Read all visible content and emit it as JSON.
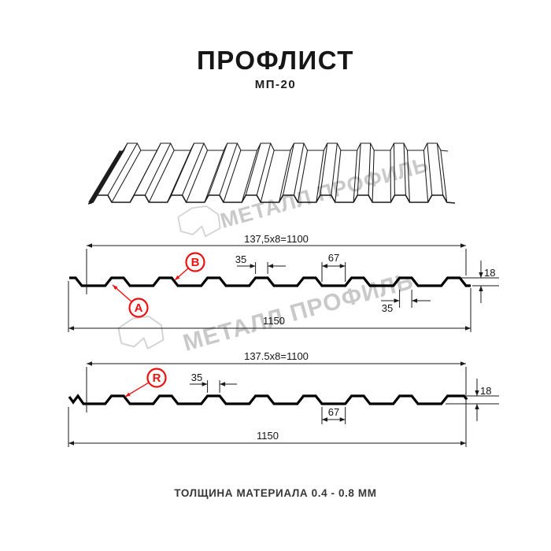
{
  "title": "ПРОФЛИСТ",
  "subtitle": "МП-20",
  "footer_note": "ТОЛЩИНА МАТЕРИАЛА 0.4 - 0.8 ММ",
  "watermark": {
    "brand": "МЕТАЛЛ ПРОФИЛЬ",
    "color": "#c9c9c9"
  },
  "colors": {
    "line": "#1a1a1a",
    "profile_stroke": "#000000",
    "accent_red": "#ee1111",
    "watermark_gray": "#c9c9c9"
  },
  "profile_top": {
    "dims": {
      "coverage": "137,5x8=1100",
      "crest_width": "35",
      "valley_width": "67",
      "height": "18",
      "crest_width_secondary": "35",
      "overall": "1150"
    },
    "point_labels": {
      "a": "A",
      "b": "B"
    }
  },
  "profile_bottom": {
    "dims": {
      "coverage": "137.5x8=1100",
      "crest_width": "35",
      "valley_width": "67",
      "height": "18",
      "overall": "1150"
    },
    "point_labels": {
      "r": "R"
    }
  }
}
